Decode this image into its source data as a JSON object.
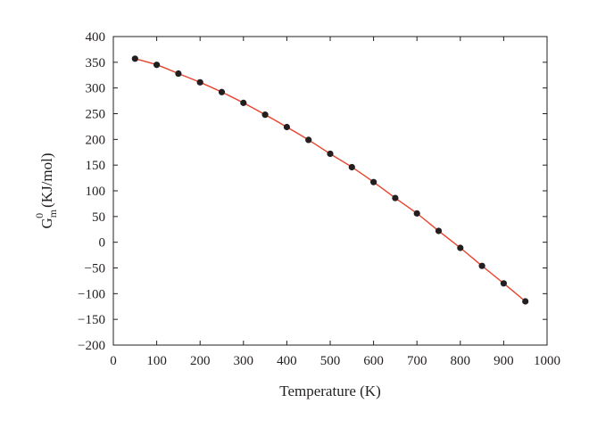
{
  "chart_data": {
    "type": "line",
    "title": "",
    "xlabel": "Temperature (K)",
    "ylabel": {
      "base": "G",
      "subscript": "m",
      "superscript": "0",
      "unit": "(KJ/mol)"
    },
    "xlim": [
      0,
      1000
    ],
    "ylim": [
      -200,
      400
    ],
    "xticks": [
      0,
      100,
      200,
      300,
      400,
      500,
      600,
      700,
      800,
      900,
      1000
    ],
    "yticks": [
      400,
      350,
      300,
      250,
      200,
      150,
      100,
      50,
      0,
      -50,
      -100,
      -150,
      -200
    ],
    "ytick_labels": [
      "400",
      "350",
      "300",
      "250",
      "200",
      "150",
      "100",
      "50",
      "0",
      "−50",
      "−100",
      "−150",
      "−200"
    ],
    "grid": false,
    "series": [
      {
        "x": [
          50,
          100,
          150,
          200,
          250,
          300,
          350,
          400,
          450,
          500,
          550,
          600,
          650,
          700,
          750,
          800,
          850,
          900,
          950
        ],
        "y": [
          357,
          345,
          328,
          311,
          292,
          271,
          248,
          224,
          199,
          172,
          146,
          117,
          86,
          56,
          22,
          -11,
          -46,
          -80,
          -115
        ],
        "line_color": "#e8432b",
        "marker_color": "#231f20"
      }
    ]
  }
}
